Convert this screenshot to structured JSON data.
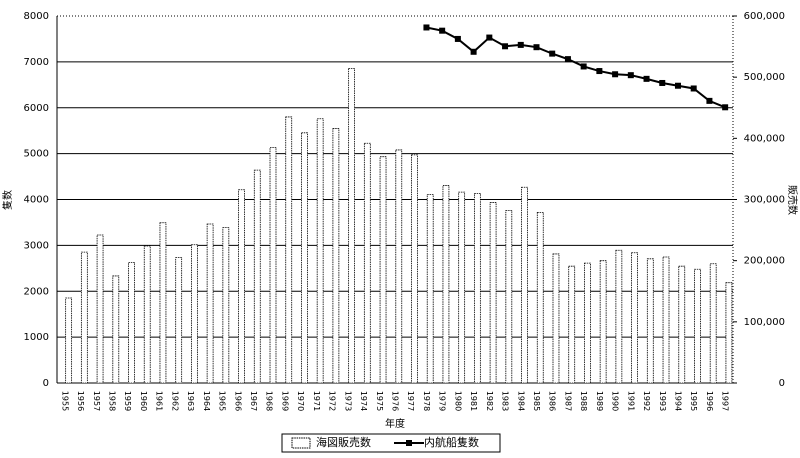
{
  "chart_data": {
    "type": "bar",
    "categories": [
      "1955",
      "1956",
      "1957",
      "1958",
      "1959",
      "1960",
      "1961",
      "1962",
      "1963",
      "1964",
      "1965",
      "1966",
      "1967",
      "1968",
      "1969",
      "1970",
      "1971",
      "1972",
      "1973",
      "1974",
      "1975",
      "1976",
      "1977",
      "1978",
      "1979",
      "1980",
      "1981",
      "1982",
      "1983",
      "1984",
      "1985",
      "1986",
      "1987",
      "1988",
      "1989",
      "1990",
      "1991",
      "1992",
      "1993",
      "1994",
      "1995",
      "1996",
      "1997"
    ],
    "x_label": "年度",
    "y_label": "隻数",
    "y2_label": "販売数",
    "ylim": [
      0,
      8000
    ],
    "yticks": [
      0,
      1000,
      2000,
      3000,
      4000,
      5000,
      6000,
      7000,
      8000
    ],
    "y2lim": [
      0,
      600000
    ],
    "y2ticks": [
      0,
      {
        "value": 100000,
        "label": "100,000"
      },
      {
        "value": 200000,
        "label": "200,000"
      },
      {
        "value": 300000,
        "label": "300,000"
      },
      {
        "value": 400000,
        "label": "400,000"
      },
      {
        "value": 500000,
        "label": "500,000"
      },
      {
        "value": 600000,
        "label": "600,000"
      }
    ],
    "grid": true,
    "series": [
      {
        "name": "海図販売数",
        "type": "bar",
        "axis": "y2",
        "color": "#ffffff",
        "values": [
          139000,
          214000,
          242000,
          175000,
          197000,
          224000,
          262000,
          205000,
          226000,
          260000,
          254000,
          316000,
          348000,
          385000,
          435000,
          409000,
          432000,
          416000,
          514000,
          392000,
          370000,
          381000,
          373000,
          308000,
          323000,
          312000,
          310000,
          295000,
          282000,
          320000,
          279000,
          211000,
          191000,
          196000,
          200000,
          217000,
          213000,
          203000,
          206000,
          191000,
          186000,
          195000,
          164000
        ]
      },
      {
        "name": "内航船隻数",
        "type": "line",
        "color": "#000000",
        "values": [
          null,
          null,
          null,
          null,
          null,
          null,
          null,
          null,
          null,
          null,
          null,
          null,
          null,
          null,
          null,
          null,
          null,
          null,
          null,
          null,
          null,
          null,
          null,
          7750,
          7680,
          7500,
          7220,
          7530,
          7340,
          7370,
          7320,
          7180,
          7060,
          6900,
          6800,
          6730,
          6710,
          6630,
          6540,
          6480,
          6420,
          6150,
          6010
        ]
      }
    ]
  }
}
